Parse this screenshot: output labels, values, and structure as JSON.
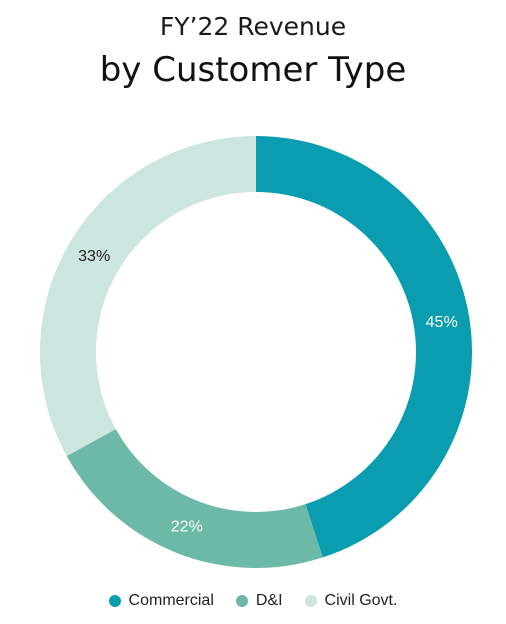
{
  "chart_data": {
    "type": "pie",
    "title_line1": "FY’22 Revenue",
    "title_line2": "by Customer Type",
    "categories": [
      "Commercial",
      "D&I",
      "Civil Govt."
    ],
    "values": [
      45,
      22,
      33
    ],
    "labels": [
      "45%",
      "22%",
      "33%"
    ],
    "colors": [
      "#0a9db0",
      "#6bb9a6",
      "#cce6df"
    ],
    "label_colors": [
      "#ffffff",
      "#ffffff",
      "#222222"
    ],
    "legend_position": "bottom",
    "donut": true
  }
}
